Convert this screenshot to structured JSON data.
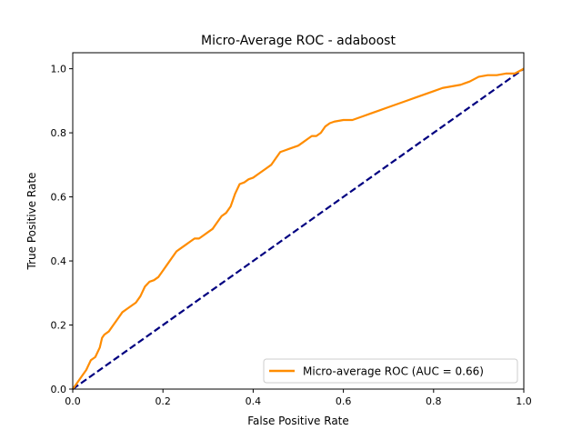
{
  "chart_data": {
    "type": "line",
    "title": "Micro-Average ROC - adaboost",
    "xlabel": "False Positive Rate",
    "ylabel": "True Positive Rate",
    "xlim": [
      0.0,
      1.0
    ],
    "ylim": [
      0.0,
      1.05
    ],
    "xticks": [
      0.0,
      0.2,
      0.4,
      0.6,
      0.8,
      1.0
    ],
    "yticks": [
      0.0,
      0.2,
      0.4,
      0.6,
      0.8,
      1.0
    ],
    "xtick_labels": [
      "0.0",
      "0.2",
      "0.4",
      "0.6",
      "0.8",
      "1.0"
    ],
    "ytick_labels": [
      "0.0",
      "0.2",
      "0.4",
      "0.6",
      "0.8",
      "1.0"
    ],
    "grid": false,
    "legend_position": "lower-right",
    "series": [
      {
        "name": "Micro-average ROC (AUC = 0.66)",
        "color": "#ff8c00",
        "style": "solid",
        "x": [
          0.0,
          0.005,
          0.01,
          0.02,
          0.03,
          0.04,
          0.05,
          0.06,
          0.065,
          0.07,
          0.08,
          0.09,
          0.1,
          0.11,
          0.12,
          0.13,
          0.14,
          0.15,
          0.16,
          0.17,
          0.18,
          0.19,
          0.2,
          0.21,
          0.22,
          0.23,
          0.24,
          0.25,
          0.26,
          0.27,
          0.28,
          0.29,
          0.3,
          0.31,
          0.32,
          0.33,
          0.34,
          0.35,
          0.355,
          0.36,
          0.37,
          0.38,
          0.385,
          0.39,
          0.4,
          0.41,
          0.42,
          0.43,
          0.44,
          0.45,
          0.46,
          0.47,
          0.48,
          0.49,
          0.5,
          0.51,
          0.52,
          0.53,
          0.54,
          0.55,
          0.56,
          0.57,
          0.58,
          0.6,
          0.62,
          0.64,
          0.66,
          0.68,
          0.7,
          0.72,
          0.74,
          0.76,
          0.78,
          0.8,
          0.82,
          0.84,
          0.86,
          0.88,
          0.9,
          0.92,
          0.94,
          0.96,
          0.98,
          1.0
        ],
        "y": [
          0.0,
          0.01,
          0.02,
          0.04,
          0.06,
          0.09,
          0.1,
          0.13,
          0.16,
          0.17,
          0.18,
          0.2,
          0.22,
          0.24,
          0.25,
          0.26,
          0.27,
          0.29,
          0.32,
          0.335,
          0.34,
          0.35,
          0.37,
          0.39,
          0.41,
          0.43,
          0.44,
          0.45,
          0.46,
          0.47,
          0.47,
          0.48,
          0.49,
          0.5,
          0.52,
          0.54,
          0.55,
          0.57,
          0.59,
          0.61,
          0.64,
          0.645,
          0.65,
          0.655,
          0.66,
          0.67,
          0.68,
          0.69,
          0.7,
          0.72,
          0.74,
          0.745,
          0.75,
          0.755,
          0.76,
          0.77,
          0.78,
          0.79,
          0.79,
          0.8,
          0.82,
          0.83,
          0.835,
          0.84,
          0.84,
          0.85,
          0.86,
          0.87,
          0.88,
          0.89,
          0.9,
          0.91,
          0.92,
          0.93,
          0.94,
          0.945,
          0.95,
          0.96,
          0.975,
          0.98,
          0.98,
          0.985,
          0.985,
          1.0
        ]
      },
      {
        "name": "",
        "color": "#000080",
        "style": "dashed",
        "x": [
          0.0,
          1.0
        ],
        "y": [
          0.0,
          1.0
        ]
      }
    ]
  }
}
